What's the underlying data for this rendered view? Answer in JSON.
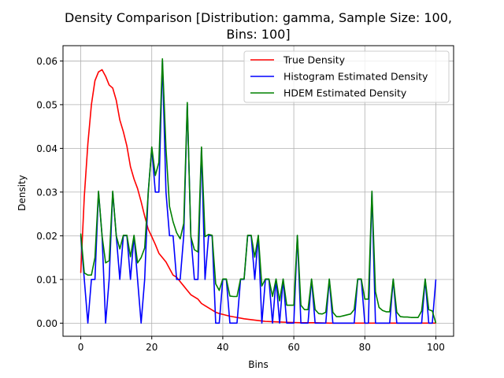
{
  "chart_data": {
    "type": "line",
    "title_line1": "Density Comparison [Distribution: gamma, Sample Size: 100,",
    "title_line2": "Bins: 100]",
    "xlabel": "Bins",
    "ylabel": "Density",
    "xlim": [
      -5,
      105
    ],
    "ylim": [
      -0.003,
      0.0635
    ],
    "xticks": [
      0,
      20,
      40,
      60,
      80,
      100
    ],
    "yticks": [
      0.0,
      0.01,
      0.02,
      0.03,
      0.04,
      0.05,
      0.06
    ],
    "ytick_labels": [
      "0.00",
      "0.01",
      "0.02",
      "0.03",
      "0.04",
      "0.05",
      "0.06"
    ],
    "grid": true,
    "legend_position": "top-right",
    "series": [
      {
        "name": "True Density",
        "color": "#ff0000",
        "points": [
          [
            0,
            0.0115
          ],
          [
            1,
            0.029
          ],
          [
            2,
            0.041
          ],
          [
            3,
            0.05
          ],
          [
            4,
            0.0555
          ],
          [
            5,
            0.0575
          ],
          [
            6,
            0.058
          ],
          [
            7,
            0.0565
          ],
          [
            8,
            0.0545
          ],
          [
            9,
            0.0538
          ],
          [
            10,
            0.051
          ],
          [
            11,
            0.0465
          ],
          [
            12,
            0.0438
          ],
          [
            13,
            0.0405
          ],
          [
            14,
            0.0358
          ],
          [
            15,
            0.033
          ],
          [
            16,
            0.0308
          ],
          [
            17,
            0.0278
          ],
          [
            18,
            0.0245
          ],
          [
            19,
            0.0215
          ],
          [
            20,
            0.0198
          ],
          [
            21,
            0.018
          ],
          [
            22,
            0.016
          ],
          [
            23,
            0.015
          ],
          [
            24,
            0.014
          ],
          [
            25,
            0.0125
          ],
          [
            26,
            0.011
          ],
          [
            27,
            0.0105
          ],
          [
            28,
            0.0095
          ],
          [
            29,
            0.0085
          ],
          [
            30,
            0.0075
          ],
          [
            31,
            0.0065
          ],
          [
            32,
            0.006
          ],
          [
            33,
            0.0055
          ],
          [
            34,
            0.0045
          ],
          [
            35,
            0.004
          ],
          [
            36,
            0.0035
          ],
          [
            37,
            0.003
          ],
          [
            38,
            0.0025
          ],
          [
            39,
            0.0022
          ],
          [
            40,
            0.002
          ],
          [
            42,
            0.0016
          ],
          [
            44,
            0.0013
          ],
          [
            46,
            0.001
          ],
          [
            48,
            0.0008
          ],
          [
            50,
            0.0006
          ],
          [
            52,
            0.0004
          ],
          [
            55,
            0.0003
          ],
          [
            58,
            0.0002
          ],
          [
            62,
            0.0001
          ],
          [
            66,
            0.0001
          ],
          [
            70,
            0.0
          ],
          [
            80,
            0.0
          ],
          [
            90,
            0.0
          ],
          [
            100,
            0.0
          ]
        ]
      },
      {
        "name": "Histogram Estimated Density",
        "color": "#0000ff",
        "points": [
          [
            0,
            0.02
          ],
          [
            1,
            0.01
          ],
          [
            2,
            0.0
          ],
          [
            3,
            0.01
          ],
          [
            4,
            0.01
          ],
          [
            5,
            0.03
          ],
          [
            6,
            0.02
          ],
          [
            7,
            0.0
          ],
          [
            8,
            0.01
          ],
          [
            9,
            0.03
          ],
          [
            10,
            0.02
          ],
          [
            11,
            0.01
          ],
          [
            12,
            0.02
          ],
          [
            13,
            0.02
          ],
          [
            14,
            0.01
          ],
          [
            15,
            0.02
          ],
          [
            16,
            0.01
          ],
          [
            17,
            0.0
          ],
          [
            18,
            0.01
          ],
          [
            19,
            0.03
          ],
          [
            20,
            0.04
          ],
          [
            21,
            0.03
          ],
          [
            22,
            0.03
          ],
          [
            23,
            0.06
          ],
          [
            24,
            0.03
          ],
          [
            25,
            0.02
          ],
          [
            26,
            0.02
          ],
          [
            27,
            0.01
          ],
          [
            28,
            0.01
          ],
          [
            29,
            0.02
          ],
          [
            30,
            0.05
          ],
          [
            31,
            0.02
          ],
          [
            32,
            0.01
          ],
          [
            33,
            0.01
          ],
          [
            34,
            0.04
          ],
          [
            35,
            0.01
          ],
          [
            36,
            0.02
          ],
          [
            37,
            0.02
          ],
          [
            38,
            0.0
          ],
          [
            39,
            0.0
          ],
          [
            40,
            0.01
          ],
          [
            41,
            0.01
          ],
          [
            42,
            0.0
          ],
          [
            43,
            0.0
          ],
          [
            44,
            0.0
          ],
          [
            45,
            0.01
          ],
          [
            46,
            0.01
          ],
          [
            47,
            0.02
          ],
          [
            48,
            0.02
          ],
          [
            49,
            0.01
          ],
          [
            50,
            0.02
          ],
          [
            51,
            0.0
          ],
          [
            52,
            0.01
          ],
          [
            53,
            0.01
          ],
          [
            54,
            0.0
          ],
          [
            55,
            0.01
          ],
          [
            56,
            0.0
          ],
          [
            57,
            0.01
          ],
          [
            58,
            0.0
          ],
          [
            59,
            0.0
          ],
          [
            60,
            0.0
          ],
          [
            61,
            0.02
          ],
          [
            62,
            0.0
          ],
          [
            63,
            0.0
          ],
          [
            64,
            0.0
          ],
          [
            65,
            0.01
          ],
          [
            66,
            0.0
          ],
          [
            67,
            0.0
          ],
          [
            68,
            0.0
          ],
          [
            69,
            0.0
          ],
          [
            70,
            0.01
          ],
          [
            71,
            0.0
          ],
          [
            72,
            0.0
          ],
          [
            73,
            0.0
          ],
          [
            74,
            0.0
          ],
          [
            75,
            0.0
          ],
          [
            76,
            0.0
          ],
          [
            77,
            0.0
          ],
          [
            78,
            0.01
          ],
          [
            79,
            0.01
          ],
          [
            80,
            0.0
          ],
          [
            81,
            0.0
          ],
          [
            82,
            0.03
          ],
          [
            83,
            0.0
          ],
          [
            84,
            0.0
          ],
          [
            85,
            0.0
          ],
          [
            86,
            0.0
          ],
          [
            87,
            0.0
          ],
          [
            88,
            0.01
          ],
          [
            89,
            0.0
          ],
          [
            90,
            0.0
          ],
          [
            91,
            0.0
          ],
          [
            92,
            0.0
          ],
          [
            93,
            0.0
          ],
          [
            94,
            0.0
          ],
          [
            95,
            0.0
          ],
          [
            96,
            0.0
          ],
          [
            97,
            0.01
          ],
          [
            98,
            0.0
          ],
          [
            99,
            0.0
          ],
          [
            100,
            0.01
          ]
        ]
      },
      {
        "name": "HDEM Estimated Density",
        "color": "#008000",
        "points": [
          [
            0,
            0.0205
          ],
          [
            1,
            0.0115
          ],
          [
            2,
            0.011
          ],
          [
            3,
            0.011
          ],
          [
            4,
            0.015
          ],
          [
            5,
            0.0302
          ],
          [
            6,
            0.02
          ],
          [
            7,
            0.0138
          ],
          [
            8,
            0.0143
          ],
          [
            9,
            0.0302
          ],
          [
            10,
            0.02
          ],
          [
            11,
            0.017
          ],
          [
            12,
            0.0201
          ],
          [
            13,
            0.0201
          ],
          [
            14,
            0.0152
          ],
          [
            15,
            0.0201
          ],
          [
            16,
            0.0138
          ],
          [
            17,
            0.015
          ],
          [
            18,
            0.0172
          ],
          [
            19,
            0.0298
          ],
          [
            20,
            0.0403
          ],
          [
            21,
            0.0338
          ],
          [
            22,
            0.0368
          ],
          [
            23,
            0.0605
          ],
          [
            24,
            0.04
          ],
          [
            25,
            0.0267
          ],
          [
            26,
            0.0232
          ],
          [
            27,
            0.0207
          ],
          [
            28,
            0.0193
          ],
          [
            29,
            0.0228
          ],
          [
            30,
            0.0505
          ],
          [
            31,
            0.0198
          ],
          [
            32,
            0.0168
          ],
          [
            33,
            0.0163
          ],
          [
            34,
            0.0403
          ],
          [
            35,
            0.0198
          ],
          [
            36,
            0.0203
          ],
          [
            37,
            0.0201
          ],
          [
            38,
            0.009
          ],
          [
            39,
            0.0075
          ],
          [
            40,
            0.0101
          ],
          [
            41,
            0.0101
          ],
          [
            42,
            0.0062
          ],
          [
            43,
            0.0061
          ],
          [
            44,
            0.0061
          ],
          [
            45,
            0.0101
          ],
          [
            46,
            0.0101
          ],
          [
            47,
            0.0201
          ],
          [
            48,
            0.0201
          ],
          [
            49,
            0.0151
          ],
          [
            50,
            0.0201
          ],
          [
            51,
            0.0085
          ],
          [
            52,
            0.0101
          ],
          [
            53,
            0.0101
          ],
          [
            54,
            0.0061
          ],
          [
            55,
            0.0101
          ],
          [
            56,
            0.0051
          ],
          [
            57,
            0.0101
          ],
          [
            58,
            0.0041
          ],
          [
            59,
            0.0041
          ],
          [
            60,
            0.0041
          ],
          [
            61,
            0.0201
          ],
          [
            62,
            0.0041
          ],
          [
            63,
            0.0031
          ],
          [
            64,
            0.0031
          ],
          [
            65,
            0.0101
          ],
          [
            66,
            0.0031
          ],
          [
            67,
            0.0022
          ],
          [
            68,
            0.0021
          ],
          [
            69,
            0.0025
          ],
          [
            70,
            0.0101
          ],
          [
            71,
            0.0025
          ],
          [
            72,
            0.0015
          ],
          [
            73,
            0.0015
          ],
          [
            74,
            0.0017
          ],
          [
            75,
            0.0019
          ],
          [
            76,
            0.0021
          ],
          [
            77,
            0.0031
          ],
          [
            78,
            0.0101
          ],
          [
            79,
            0.0101
          ],
          [
            80,
            0.0055
          ],
          [
            81,
            0.0055
          ],
          [
            82,
            0.0302
          ],
          [
            83,
            0.0072
          ],
          [
            84,
            0.0036
          ],
          [
            85,
            0.0029
          ],
          [
            86,
            0.0026
          ],
          [
            87,
            0.0026
          ],
          [
            88,
            0.0101
          ],
          [
            89,
            0.0025
          ],
          [
            90,
            0.0015
          ],
          [
            91,
            0.0014
          ],
          [
            92,
            0.0014
          ],
          [
            93,
            0.0013
          ],
          [
            94,
            0.0013
          ],
          [
            95,
            0.0013
          ],
          [
            96,
            0.0028
          ],
          [
            97,
            0.0101
          ],
          [
            98,
            0.0031
          ],
          [
            99,
            0.0028
          ],
          [
            100,
            0.0
          ]
        ]
      }
    ]
  }
}
